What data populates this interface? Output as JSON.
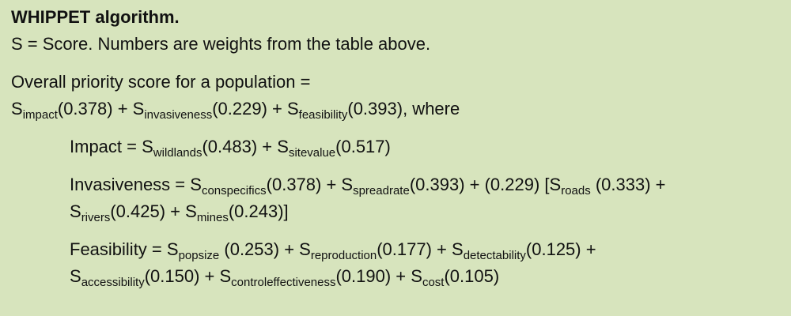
{
  "title": "WHIPPET algorithm.",
  "note": "S = Score. Numbers are weights from the table above.",
  "overall": {
    "lines": [
      [
        {
          "text": "Overall priority score for a population ="
        }
      ],
      [
        {
          "text": "S"
        },
        {
          "sub": "impact"
        },
        {
          "text": "(0.378) + S"
        },
        {
          "sub": "invasiveness"
        },
        {
          "text": "(0.229) + S"
        },
        {
          "sub": "feasibility"
        },
        {
          "text": "(0.393), where"
        }
      ]
    ]
  },
  "components": [
    {
      "lines": [
        [
          {
            "text": "Impact = S"
          },
          {
            "sub": "wildlands"
          },
          {
            "text": "(0.483) + S"
          },
          {
            "sub": "sitevalue"
          },
          {
            "text": "(0.517)"
          }
        ]
      ]
    },
    {
      "lines": [
        [
          {
            "text": "Invasiveness = S"
          },
          {
            "sub": "conspecifics"
          },
          {
            "text": "(0.378) + S"
          },
          {
            "sub": "spreadrate"
          },
          {
            "text": "(0.393) + (0.229) [S"
          },
          {
            "sub": "roads"
          },
          {
            "text": " (0.333) +"
          }
        ],
        [
          {
            "text": "S"
          },
          {
            "sub": "rivers"
          },
          {
            "text": "(0.425) + S"
          },
          {
            "sub": "mines"
          },
          {
            "text": "(0.243)]"
          }
        ]
      ]
    },
    {
      "lines": [
        [
          {
            "text": "Feasibility = S"
          },
          {
            "sub": "popsize"
          },
          {
            "text": " (0.253) + S"
          },
          {
            "sub": "reproduction"
          },
          {
            "text": "(0.177) + S"
          },
          {
            "sub": "detectability"
          },
          {
            "text": "(0.125) +"
          }
        ],
        [
          {
            "text": "S"
          },
          {
            "sub": "accessibility"
          },
          {
            "text": "(0.150) + S"
          },
          {
            "sub": "controleffectiveness"
          },
          {
            "text": "(0.190) + S"
          },
          {
            "sub": "cost"
          },
          {
            "text": "(0.105)"
          }
        ]
      ]
    }
  ]
}
